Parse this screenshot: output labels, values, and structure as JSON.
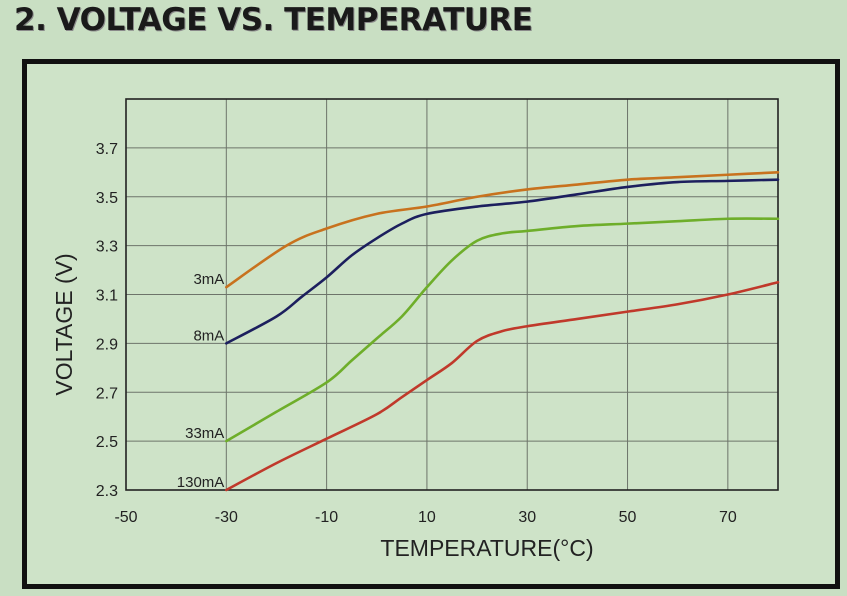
{
  "heading": "2. VOLTAGE VS. TEMPERATURE",
  "chart_data": {
    "type": "line",
    "title": "2. VOLTAGE VS. TEMPERATURE",
    "xlabel": "TEMPERATURE(°C)",
    "ylabel": "VOLTAGE (V)",
    "xlim": [
      -50,
      80
    ],
    "ylim": [
      2.3,
      3.9
    ],
    "xticks": [
      -50,
      -30,
      -10,
      10,
      30,
      50,
      70
    ],
    "xtick_labels": [
      "-50",
      "-30",
      "-10",
      "10",
      "30",
      "50",
      "70"
    ],
    "yticks": [
      2.3,
      2.5,
      2.7,
      2.9,
      3.1,
      3.3,
      3.5,
      3.7
    ],
    "ytick_labels": [
      "2.3",
      "2.5",
      "2.7",
      "2.9",
      "3.1",
      "3.3",
      "3.5",
      "3.7"
    ],
    "grid": true,
    "series": [
      {
        "name": "3mA",
        "color": "#c8721e",
        "x": [
          -30,
          -18,
          -10,
          0,
          10,
          20,
          30,
          40,
          50,
          60,
          70,
          80
        ],
        "y": [
          3.13,
          3.3,
          3.37,
          3.43,
          3.46,
          3.5,
          3.53,
          3.55,
          3.57,
          3.58,
          3.59,
          3.6
        ]
      },
      {
        "name": "8mA",
        "color": "#1c1f5e",
        "x": [
          -30,
          -20,
          -15,
          -10,
          -5,
          0,
          5,
          10,
          20,
          30,
          40,
          50,
          60,
          70,
          80
        ],
        "y": [
          2.9,
          3.01,
          3.09,
          3.17,
          3.26,
          3.33,
          3.39,
          3.43,
          3.46,
          3.48,
          3.51,
          3.54,
          3.56,
          3.565,
          3.57
        ]
      },
      {
        "name": "33mA",
        "color": "#6eae2a",
        "x": [
          -30,
          -20,
          -10,
          -5,
          0,
          5,
          10,
          15,
          20,
          25,
          30,
          40,
          50,
          60,
          70,
          80
        ],
        "y": [
          2.5,
          2.62,
          2.74,
          2.83,
          2.92,
          3.01,
          3.13,
          3.24,
          3.32,
          3.35,
          3.36,
          3.38,
          3.39,
          3.4,
          3.41,
          3.41
        ]
      },
      {
        "name": "130mA",
        "color": "#c0392b",
        "x": [
          -30,
          -20,
          -10,
          0,
          5,
          10,
          15,
          20,
          25,
          30,
          40,
          50,
          60,
          70,
          80
        ],
        "y": [
          2.3,
          2.41,
          2.51,
          2.61,
          2.68,
          2.75,
          2.82,
          2.91,
          2.95,
          2.97,
          3.0,
          3.03,
          3.06,
          3.1,
          3.15
        ]
      }
    ]
  }
}
